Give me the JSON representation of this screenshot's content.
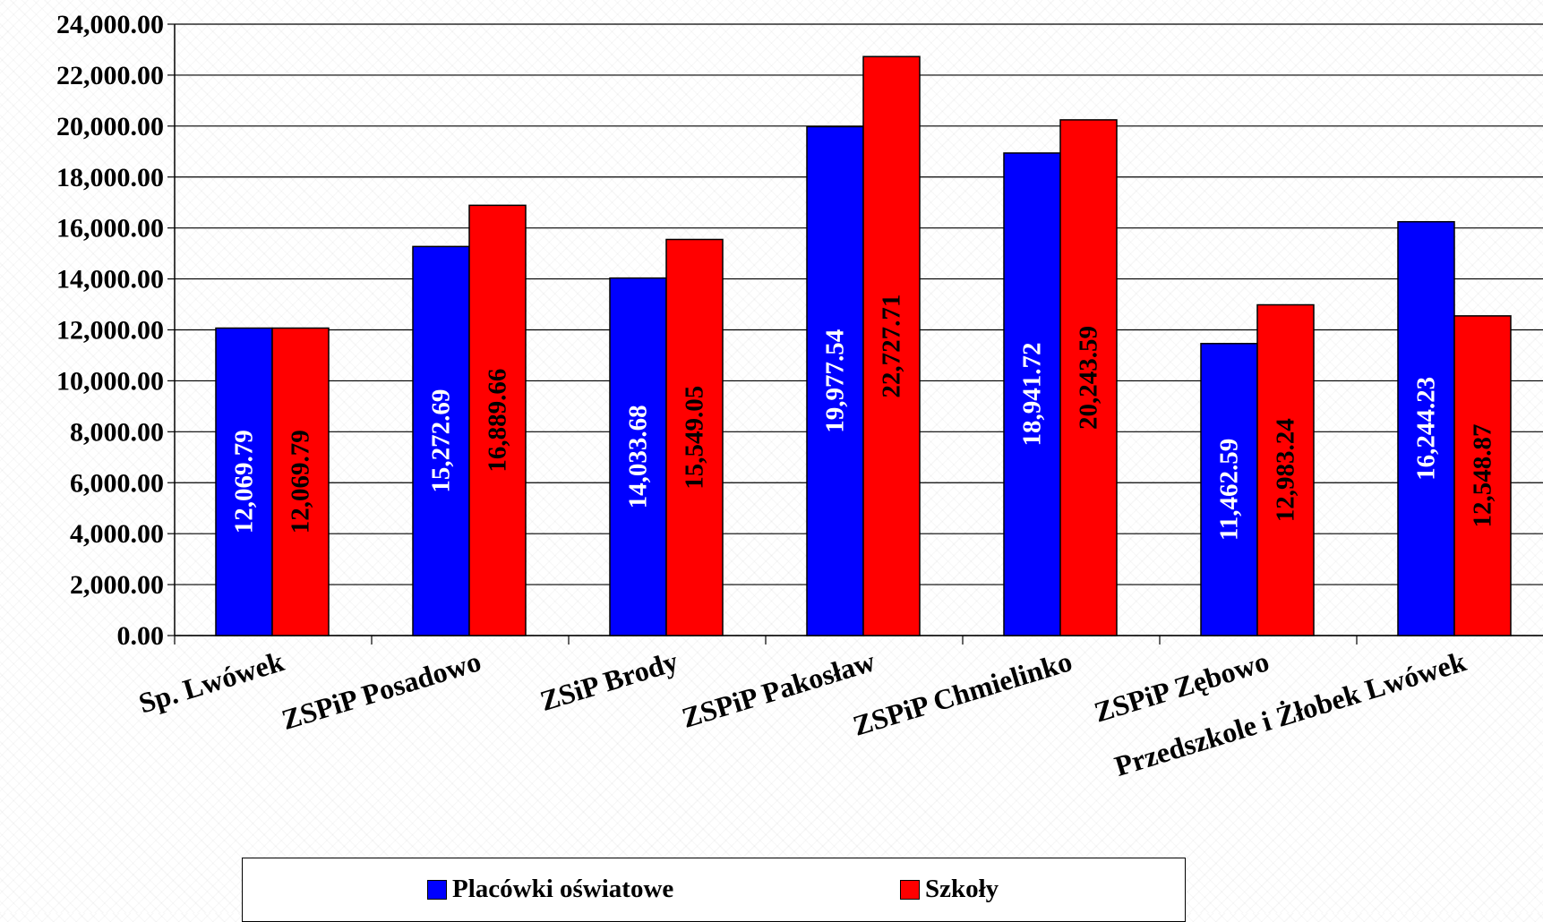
{
  "chart_data": {
    "type": "bar",
    "categories": [
      "Sp. Lwówek",
      "ZSPiP Posadowo",
      "ZSiP Brody",
      "ZSPiP Pakosław",
      "ZSPiP Chmielinko",
      "ZSPiP Zębowo",
      "Przedszkole i Żłobek Lwówek"
    ],
    "series": [
      {
        "name": "Placówki oświatowe",
        "color": "#0000ff",
        "label_color": "#ffffff",
        "values": [
          12069.79,
          15272.69,
          14033.68,
          19977.54,
          18941.72,
          11462.59,
          16244.23
        ],
        "labels": [
          "12,069.79",
          "15,272.69",
          "14,033.68",
          "19,977.54",
          "18,941.72",
          "11,462.59",
          "16,244.23"
        ]
      },
      {
        "name": "Szkoły",
        "color": "#ff0000",
        "label_color": "#000000",
        "values": [
          12069.79,
          16889.66,
          15549.05,
          22727.71,
          20243.59,
          12983.24,
          12548.87
        ],
        "labels": [
          "12,069.79",
          "16,889.66",
          "15,549.05",
          "22,727.71",
          "20,243.59",
          "12,983.24",
          "12,548.87"
        ]
      }
    ],
    "ylim": [
      0,
      24000
    ],
    "yticks": [
      0,
      2000,
      4000,
      6000,
      8000,
      10000,
      12000,
      14000,
      16000,
      18000,
      20000,
      22000,
      24000
    ],
    "ytick_labels": [
      "0.00",
      "2,000.00",
      "4,000.00",
      "6,000.00",
      "8,000.00",
      "10,000.00",
      "12,000.00",
      "14,000.00",
      "16,000.00",
      "18,000.00",
      "20,000.00",
      "22,000.00",
      "24,000.00"
    ],
    "grid": true,
    "legend_position": "bottom",
    "title": "",
    "xlabel": "",
    "ylabel": ""
  }
}
